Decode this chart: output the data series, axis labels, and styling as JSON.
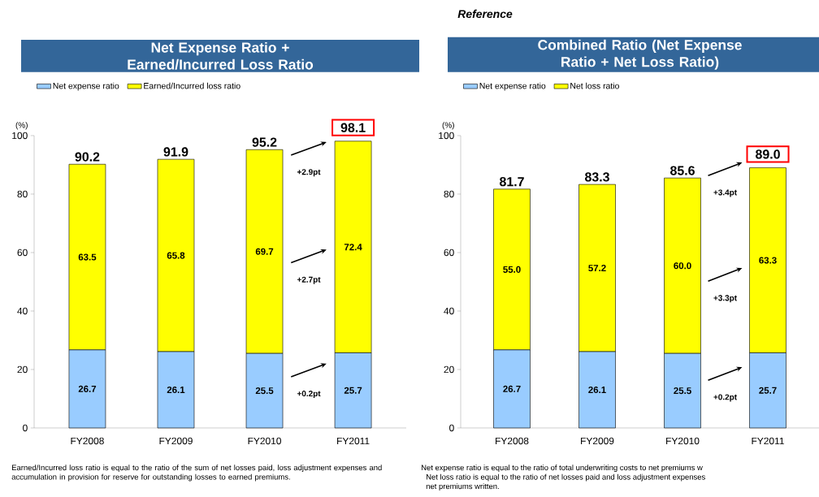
{
  "chart_data": [
    {
      "type": "bar",
      "stacked": true,
      "title": "Net Expense Ratio + Earned/Incurred Loss Ratio",
      "ylabel": "(%)",
      "categories": [
        "FY2008",
        "FY2009",
        "FY2010",
        "FY2011"
      ],
      "series": [
        {
          "name": "Net expense ratio",
          "color": "#99ccff",
          "values": [
            26.7,
            26.1,
            25.5,
            25.7
          ]
        },
        {
          "name": "Earned/Incurred loss ratio",
          "color": "#ffff00",
          "values": [
            63.5,
            65.8,
            69.7,
            72.4
          ]
        }
      ],
      "totals": [
        "90.2",
        "91.9",
        "95.2",
        "98.1"
      ],
      "data_labels": true,
      "legend": "top left",
      "ylim": [
        0,
        100
      ],
      "yticks": [
        0,
        20,
        40,
        60,
        80,
        100
      ],
      "annotations": [
        "+2.9pt",
        "+2.7pt",
        "+0.2pt",
        "Earned/Incurred loss ratio is equal to the ratio of the sum of net losses paid, loss adjustment expenses and accumulation in provision for reserve for outstanding losses to earned premiums."
      ]
    },
    {
      "type": "bar",
      "stacked": true,
      "title": "Combined Ratio (Net Expense Ratio + Net Loss Ratio)",
      "subtitle": "Reference",
      "ylabel": "(%)",
      "categories": [
        "FY2008",
        "FY2009",
        "FY2010",
        "FY2011"
      ],
      "series": [
        {
          "name": "Net expense ratio",
          "color": "#99ccff",
          "values": [
            26.7,
            26.1,
            25.5,
            25.7
          ],
          "value_labels": [
            "26.7",
            "26.1",
            "25.5",
            "25.7"
          ]
        },
        {
          "name": "Net loss ratio",
          "color": "#ffff00",
          "values": [
            55.0,
            57.2,
            60.0,
            63.3
          ],
          "value_labels": [
            "55.0",
            "57.2",
            "60.0",
            "63.3"
          ]
        }
      ],
      "totals": [
        "81.7",
        "83.3",
        "85.6",
        "89.0"
      ],
      "legend": "top left",
      "ylim": [
        0,
        100
      ],
      "yticks": [
        0,
        20,
        40,
        60,
        80,
        100
      ],
      "annotations": [
        "+3.4pt",
        "+3.3pt",
        "+0.2pt",
        "Net expense ratio is equal to the ratio of total underwriting costs to net premiums w",
        "Net loss ratio is equal to the ratio of net losses paid and loss adjustment expenses",
        "net premiums written."
      ]
    }
  ]
}
